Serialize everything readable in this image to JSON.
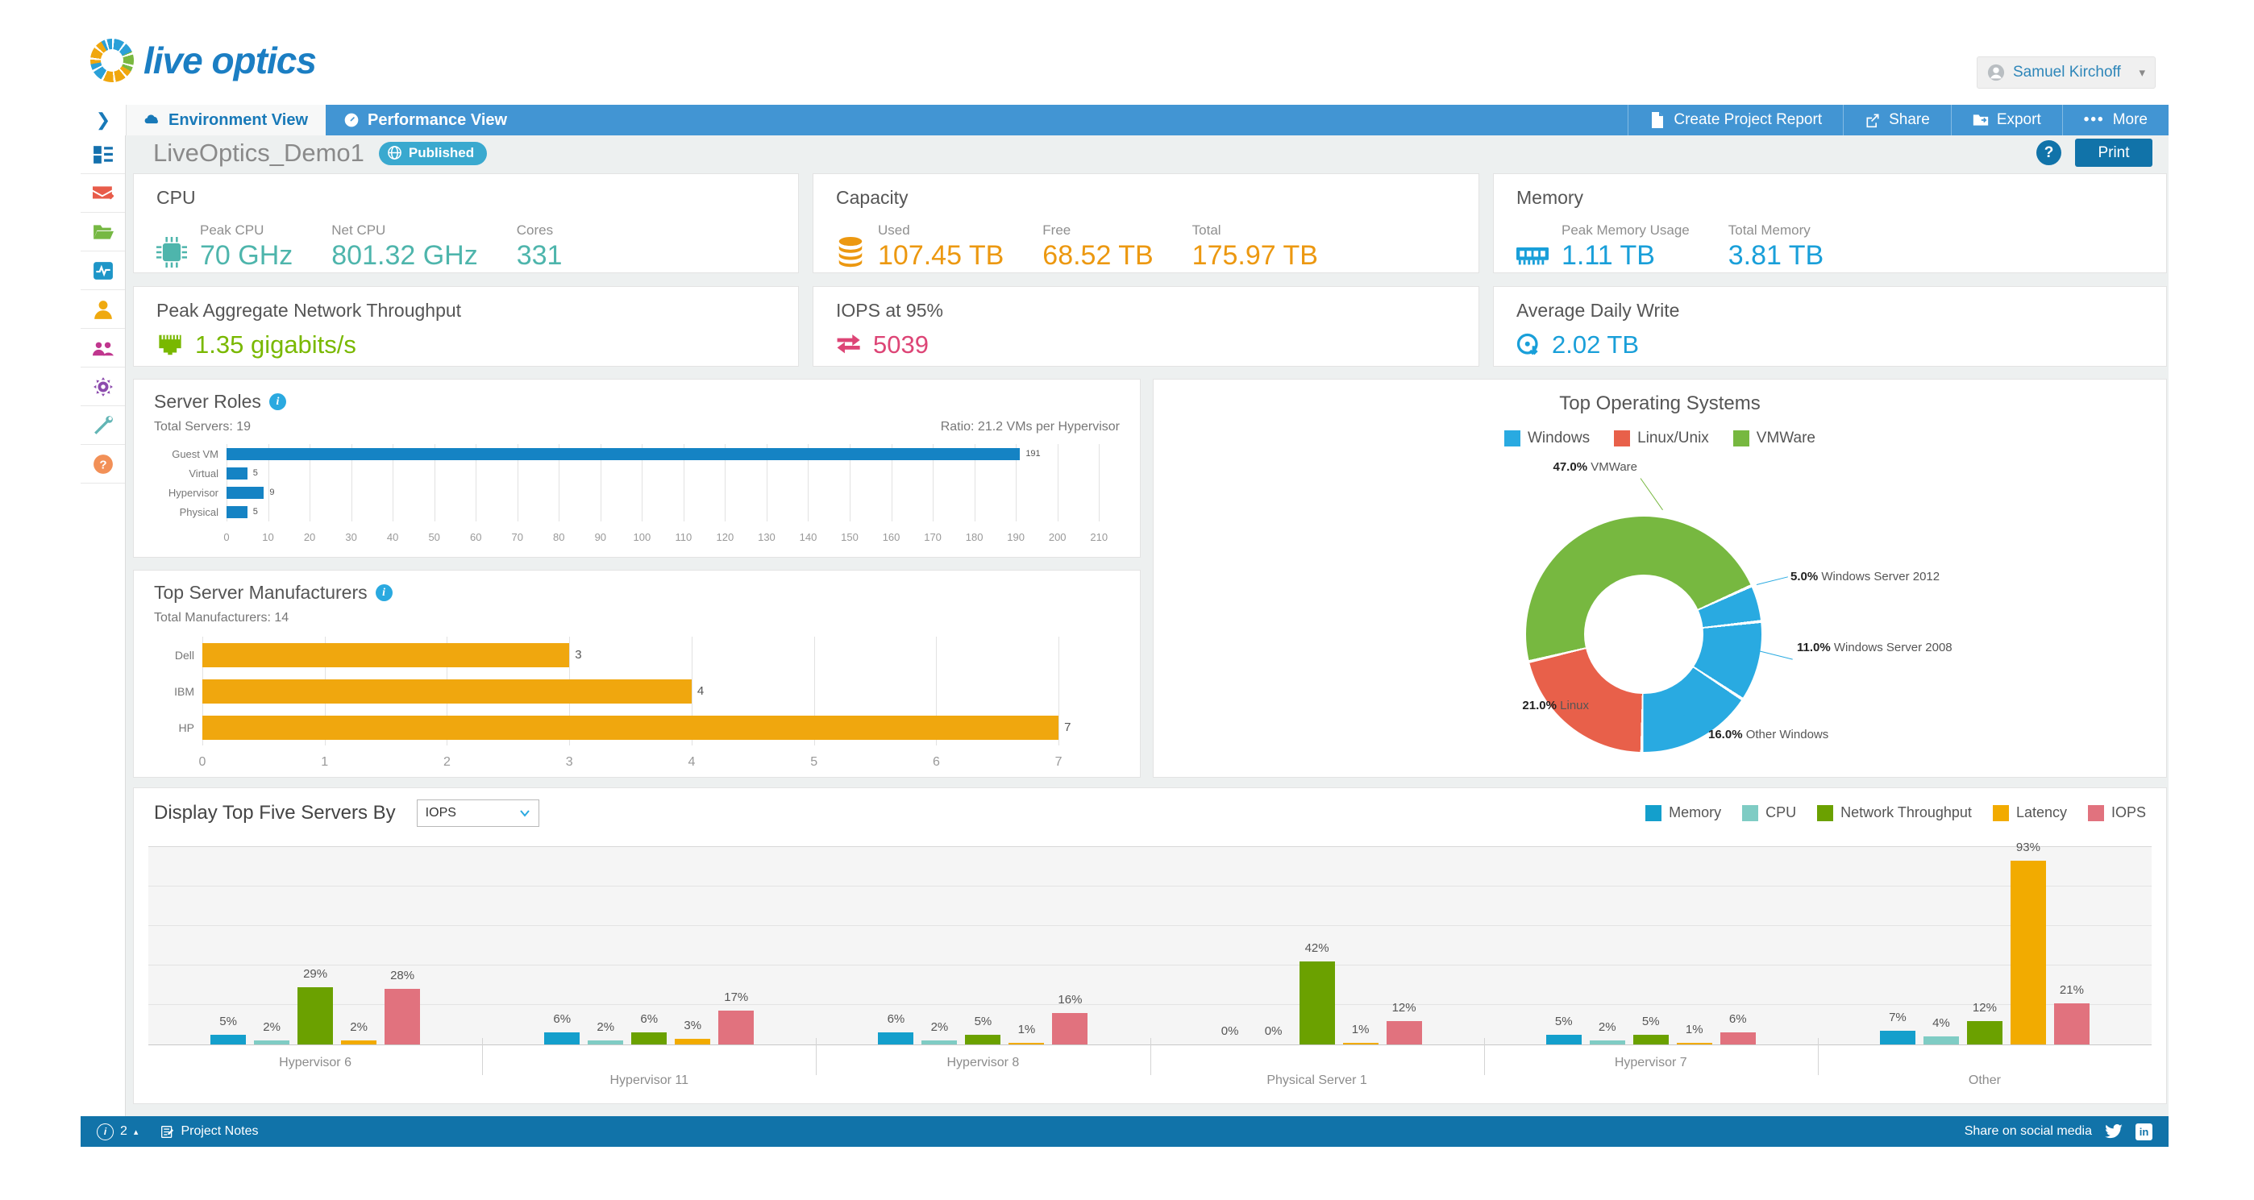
{
  "header": {
    "logo_text": "live optics",
    "user_name": "Samuel Kirchoff",
    "collapse_glyph": "❯"
  },
  "tabs": {
    "environment": "Environment View",
    "performance": "Performance View"
  },
  "toolbar": {
    "create_report": "Create Project Report",
    "share": "Share",
    "export": "Export",
    "more_dots": "•••",
    "more": "More"
  },
  "project": {
    "title": "LiveOptics_Demo1",
    "status_badge": "Published",
    "help_glyph": "?",
    "print_label": "Print"
  },
  "kpi": {
    "cpu": {
      "title": "CPU",
      "color": "#4eb5ac",
      "metrics": [
        {
          "label": "Peak CPU",
          "value": "70 GHz"
        },
        {
          "label": "Net CPU",
          "value": "801.32 GHz"
        },
        {
          "label": "Cores",
          "value": "331"
        }
      ]
    },
    "capacity": {
      "title": "Capacity",
      "color": "#ec9810",
      "metrics": [
        {
          "label": "Used",
          "value": "107.45 TB"
        },
        {
          "label": "Free",
          "value": "68.52 TB"
        },
        {
          "label": "Total",
          "value": "175.97 TB"
        }
      ]
    },
    "memory": {
      "title": "Memory",
      "color": "#199fd9",
      "metrics": [
        {
          "label": "Peak Memory Usage",
          "value": "1.11 TB"
        },
        {
          "label": "Total Memory",
          "value": "3.81 TB"
        }
      ]
    },
    "network": {
      "title": "Peak Aggregate Network Throughput",
      "value": "1.35 gigabits/s",
      "color": "#79b800"
    },
    "iops": {
      "title": "IOPS at 95%",
      "value": "5039",
      "color": "#dd4576"
    },
    "daily_write": {
      "title": "Average Daily Write",
      "value": "2.02 TB",
      "color": "#199fd9"
    }
  },
  "server_roles_header": {
    "title": "Server Roles",
    "total": "Total Servers: 19",
    "ratio": "Ratio: 21.2 VMs per Hypervisor",
    "info_glyph": "i"
  },
  "manufacturers_header": {
    "title": "Top Server Manufacturers",
    "total": "Total Manufacturers: 14",
    "info_glyph": "i"
  },
  "os_header": {
    "title": "Top Operating Systems",
    "legend": [
      {
        "label": "Windows",
        "color": "#29aae1"
      },
      {
        "label": "Linux/Unix",
        "color": "#e8604a"
      },
      {
        "label": "VMWare",
        "color": "#77b840"
      }
    ]
  },
  "top5_header": {
    "title": "Display Top Five Servers By",
    "dropdown_value": "IOPS"
  },
  "footer": {
    "count": "2",
    "info_glyph": "i",
    "caret": "▴",
    "notes": "Project Notes",
    "share_text": "Share on social media",
    "linkedin_glyph": "in"
  },
  "chart_data": [
    {
      "type": "bar",
      "orientation": "horizontal",
      "title": "Server Roles",
      "categories": [
        "Guest VM",
        "Virtual",
        "Hypervisor",
        "Physical"
      ],
      "values": [
        191,
        5,
        9,
        5
      ],
      "color": "#1583c4",
      "xlim": [
        0,
        215
      ],
      "xticks": [
        0,
        10,
        20,
        30,
        40,
        50,
        60,
        70,
        80,
        90,
        100,
        110,
        120,
        130,
        140,
        150,
        160,
        170,
        180,
        190,
        200,
        210
      ],
      "annotations": {
        "total_servers": 19,
        "ratio_vms_per_hypervisor": 21.2
      }
    },
    {
      "type": "bar",
      "orientation": "horizontal",
      "title": "Top Server Manufacturers",
      "categories": [
        "Dell",
        "IBM",
        "HP"
      ],
      "values": [
        3,
        4,
        7
      ],
      "color": "#f0a70e",
      "xlim": [
        0,
        7.5
      ],
      "xticks": [
        0,
        1,
        2,
        3,
        4,
        5,
        6,
        7
      ],
      "annotations": {
        "total_manufacturers": 14
      }
    },
    {
      "type": "pie",
      "donut": true,
      "title": "Top Operating Systems",
      "start_angle_deg": 65,
      "slices": [
        {
          "label": "Windows Server 2012",
          "pct": 5.0,
          "pct_label": "5.0%",
          "color": "#29aae1"
        },
        {
          "label": "Windows Server 2008",
          "pct": 11.0,
          "pct_label": "11.0%",
          "color": "#29aae1"
        },
        {
          "label": "Other Windows",
          "pct": 16.0,
          "pct_label": "16.0%",
          "color": "#29aae1"
        },
        {
          "label": "Linux",
          "pct": 21.0,
          "pct_label": "21.0%",
          "color": "#e8604a"
        },
        {
          "label": "VMWare",
          "pct": 47.0,
          "pct_label": "47.0%",
          "color": "#77b840"
        }
      ],
      "legend": [
        "Windows",
        "Linux/Unix",
        "VMWare"
      ],
      "legend_position": "top"
    },
    {
      "type": "bar",
      "grouped": true,
      "title": "Display Top Five Servers By",
      "categories": [
        "Hypervisor 6",
        "Hypervisor 11",
        "Hypervisor 8",
        "Physical Server 1",
        "Hypervisor 7",
        "Other"
      ],
      "series": [
        {
          "name": "Memory",
          "color": "#149fcc",
          "values": [
            5,
            6,
            6,
            0,
            5,
            7
          ]
        },
        {
          "name": "CPU",
          "color": "#7fccc4",
          "values": [
            2,
            2,
            2,
            0,
            2,
            4
          ]
        },
        {
          "name": "Network Throughput",
          "color": "#6ba100",
          "values": [
            29,
            6,
            5,
            42,
            5,
            12
          ]
        },
        {
          "name": "Latency",
          "color": "#f2ab00",
          "values": [
            2,
            3,
            1,
            1,
            1,
            93
          ]
        },
        {
          "name": "IOPS",
          "color": "#e1727e",
          "values": [
            28,
            17,
            16,
            12,
            6,
            21
          ]
        }
      ],
      "unit": "%",
      "ylim": [
        0,
        100
      ],
      "grid": true,
      "legend_position": "top-right"
    }
  ]
}
